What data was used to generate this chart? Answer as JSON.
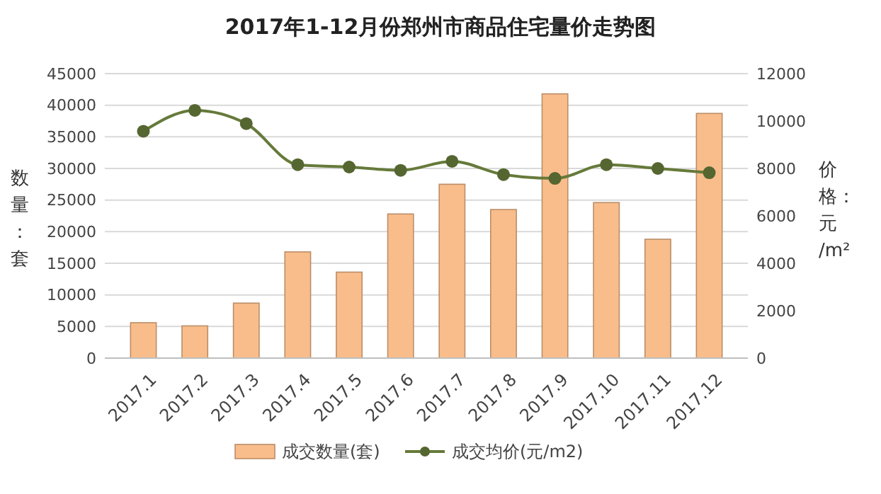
{
  "chart_data": {
    "type": "bar",
    "title": "2017年1-12月份郑州市商品住宅量价走势图",
    "ylabel": "数量：套",
    "y2label": "价格：元/m²",
    "categories": [
      "2017.1",
      "2017.2",
      "2017.3",
      "2017.4",
      "2017.5",
      "2017.6",
      "2017.7",
      "2017.8",
      "2017.9",
      "2017.10",
      "2017.11",
      "2017.12"
    ],
    "series": [
      {
        "name": "成交数量(套)",
        "color": "#f9bd8b",
        "values": [
          5600,
          5100,
          8700,
          16800,
          13600,
          22800,
          27500,
          23500,
          41800,
          24600,
          18800,
          38700
        ]
      },
      {
        "name": "成交均价(元/m2)",
        "type": "line",
        "axis": "y2",
        "color": "#667a3a",
        "marker": "circle",
        "values": [
          9570,
          10450,
          9890,
          8160,
          8060,
          7920,
          8300,
          7740,
          7580,
          8160,
          8000,
          7820
        ]
      }
    ],
    "ylim": [
      0,
      45000
    ],
    "yticks": [
      0,
      5000,
      10000,
      15000,
      20000,
      25000,
      30000,
      35000,
      40000,
      45000
    ],
    "y2lim": [
      0,
      12000
    ],
    "y2ticks": [
      0,
      2000,
      4000,
      6000,
      8000,
      10000,
      12000
    ],
    "grid": "y",
    "legend": "bottom"
  }
}
